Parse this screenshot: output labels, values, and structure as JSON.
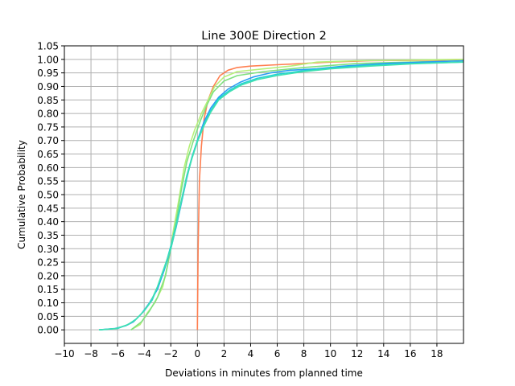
{
  "chart_data": {
    "type": "line",
    "title": "Line 300E Direction 2",
    "xlabel": "Deviations in minutes from planned time",
    "ylabel": "Cumulative Probability",
    "xlim": [
      -10,
      20
    ],
    "ylim": [
      -0.05,
      1.05
    ],
    "xticks": [
      -10,
      -8,
      -6,
      -4,
      -2,
      0,
      2,
      4,
      6,
      8,
      10,
      12,
      14,
      16,
      18
    ],
    "xtick_labels": [
      "−10",
      "−8",
      "−6",
      "−4",
      "−2",
      "0",
      "2",
      "4",
      "6",
      "8",
      "10",
      "12",
      "14",
      "16",
      "18"
    ],
    "yticks": [
      0.0,
      0.05,
      0.1,
      0.15,
      0.2,
      0.25,
      0.3,
      0.35,
      0.4,
      0.45,
      0.5,
      0.55,
      0.6,
      0.65,
      0.7,
      0.75,
      0.8,
      0.85,
      0.9,
      0.95,
      1.0,
      1.05
    ],
    "ytick_labels": [
      "0.00",
      "0.05",
      "0.10",
      "0.15",
      "0.20",
      "0.25",
      "0.30",
      "0.35",
      "0.40",
      "0.45",
      "0.50",
      "0.55",
      "0.60",
      "0.65",
      "0.70",
      "0.75",
      "0.80",
      "0.85",
      "0.90",
      "0.95",
      "1.00",
      "1.05"
    ],
    "grid": true,
    "legend": "none",
    "series": [
      {
        "color": "#ff7f50",
        "points": [
          [
            0.0,
            0.0
          ],
          [
            0.05,
            0.3
          ],
          [
            0.15,
            0.55
          ],
          [
            0.3,
            0.68
          ],
          [
            0.5,
            0.78
          ],
          [
            0.8,
            0.85
          ],
          [
            1.2,
            0.9
          ],
          [
            1.7,
            0.94
          ],
          [
            2.3,
            0.96
          ],
          [
            3.0,
            0.97
          ],
          [
            4.0,
            0.975
          ],
          [
            6.0,
            0.98
          ],
          [
            8.0,
            0.985
          ],
          [
            10.0,
            0.99
          ],
          [
            13.0,
            0.995
          ],
          [
            18.3,
            0.997
          ],
          [
            20.0,
            1.0
          ]
        ]
      },
      {
        "color": "#b7f07a",
        "points": [
          [
            -5.0,
            0.0
          ],
          [
            -4.3,
            0.02
          ],
          [
            -3.8,
            0.06
          ],
          [
            -3.2,
            0.1
          ],
          [
            -2.6,
            0.16
          ],
          [
            -2.2,
            0.25
          ],
          [
            -1.8,
            0.37
          ],
          [
            -1.4,
            0.48
          ],
          [
            -1.0,
            0.6
          ],
          [
            -0.6,
            0.68
          ],
          [
            -0.2,
            0.74
          ],
          [
            0.3,
            0.8
          ],
          [
            0.8,
            0.85
          ],
          [
            1.3,
            0.9
          ],
          [
            2.0,
            0.935
          ],
          [
            3.0,
            0.955
          ],
          [
            5.0,
            0.965
          ],
          [
            7.0,
            0.975
          ],
          [
            9.0,
            0.99
          ],
          [
            12.0,
            0.995
          ],
          [
            20.0,
            1.0
          ]
        ]
      },
      {
        "color": "#7fe07f",
        "points": [
          [
            -5.0,
            0.0
          ],
          [
            -4.2,
            0.03
          ],
          [
            -3.6,
            0.07
          ],
          [
            -3.0,
            0.12
          ],
          [
            -2.4,
            0.2
          ],
          [
            -2.0,
            0.3
          ],
          [
            -1.6,
            0.4
          ],
          [
            -1.2,
            0.52
          ],
          [
            -0.8,
            0.62
          ],
          [
            -0.3,
            0.7
          ],
          [
            0.2,
            0.77
          ],
          [
            0.7,
            0.83
          ],
          [
            1.2,
            0.88
          ],
          [
            2.0,
            0.92
          ],
          [
            3.0,
            0.94
          ],
          [
            5.0,
            0.955
          ],
          [
            8.0,
            0.97
          ],
          [
            12.0,
            0.985
          ],
          [
            16.0,
            0.99
          ],
          [
            20.0,
            0.995
          ]
        ]
      },
      {
        "color": "#2a9df4",
        "points": [
          [
            -7.4,
            0.0
          ],
          [
            -6.2,
            0.005
          ],
          [
            -5.4,
            0.015
          ],
          [
            -4.8,
            0.03
          ],
          [
            -4.2,
            0.06
          ],
          [
            -3.6,
            0.1
          ],
          [
            -3.0,
            0.15
          ],
          [
            -2.5,
            0.22
          ],
          [
            -2.0,
            0.3
          ],
          [
            -1.6,
            0.38
          ],
          [
            -1.2,
            0.47
          ],
          [
            -0.8,
            0.56
          ],
          [
            -0.4,
            0.64
          ],
          [
            0.0,
            0.7
          ],
          [
            0.5,
            0.77
          ],
          [
            1.0,
            0.82
          ],
          [
            1.6,
            0.86
          ],
          [
            2.3,
            0.89
          ],
          [
            3.2,
            0.915
          ],
          [
            4.2,
            0.935
          ],
          [
            5.5,
            0.95
          ],
          [
            7.0,
            0.96
          ],
          [
            9.0,
            0.965
          ],
          [
            11.0,
            0.975
          ],
          [
            14.0,
            0.985
          ],
          [
            17.0,
            0.99
          ],
          [
            20.0,
            0.995
          ]
        ]
      },
      {
        "color": "#1fd2d2",
        "points": [
          [
            -7.4,
            0.0
          ],
          [
            -6.0,
            0.005
          ],
          [
            -5.2,
            0.02
          ],
          [
            -4.6,
            0.04
          ],
          [
            -4.0,
            0.07
          ],
          [
            -3.4,
            0.11
          ],
          [
            -2.9,
            0.17
          ],
          [
            -2.4,
            0.24
          ],
          [
            -2.0,
            0.31
          ],
          [
            -1.6,
            0.39
          ],
          [
            -1.2,
            0.48
          ],
          [
            -0.8,
            0.57
          ],
          [
            -0.4,
            0.64
          ],
          [
            0.0,
            0.7
          ],
          [
            0.5,
            0.76
          ],
          [
            1.0,
            0.81
          ],
          [
            1.6,
            0.855
          ],
          [
            2.4,
            0.885
          ],
          [
            3.3,
            0.91
          ],
          [
            4.5,
            0.93
          ],
          [
            6.0,
            0.945
          ],
          [
            8.0,
            0.958
          ],
          [
            10.0,
            0.968
          ],
          [
            13.0,
            0.978
          ],
          [
            16.0,
            0.985
          ],
          [
            20.0,
            0.99
          ]
        ]
      },
      {
        "color": "#40e0b0",
        "points": [
          [
            -7.4,
            0.0
          ],
          [
            -6.1,
            0.005
          ],
          [
            -5.3,
            0.018
          ],
          [
            -4.7,
            0.035
          ],
          [
            -4.1,
            0.065
          ],
          [
            -3.5,
            0.105
          ],
          [
            -3.0,
            0.16
          ],
          [
            -2.5,
            0.23
          ],
          [
            -2.0,
            0.3
          ],
          [
            -1.6,
            0.385
          ],
          [
            -1.2,
            0.475
          ],
          [
            -0.8,
            0.565
          ],
          [
            -0.4,
            0.635
          ],
          [
            0.0,
            0.695
          ],
          [
            0.5,
            0.755
          ],
          [
            1.0,
            0.805
          ],
          [
            1.6,
            0.85
          ],
          [
            2.4,
            0.88
          ],
          [
            3.3,
            0.905
          ],
          [
            4.5,
            0.925
          ],
          [
            6.0,
            0.94
          ],
          [
            8.0,
            0.955
          ],
          [
            10.0,
            0.965
          ],
          [
            13.0,
            0.975
          ],
          [
            16.0,
            0.983
          ],
          [
            20.0,
            0.99
          ]
        ]
      }
    ]
  }
}
